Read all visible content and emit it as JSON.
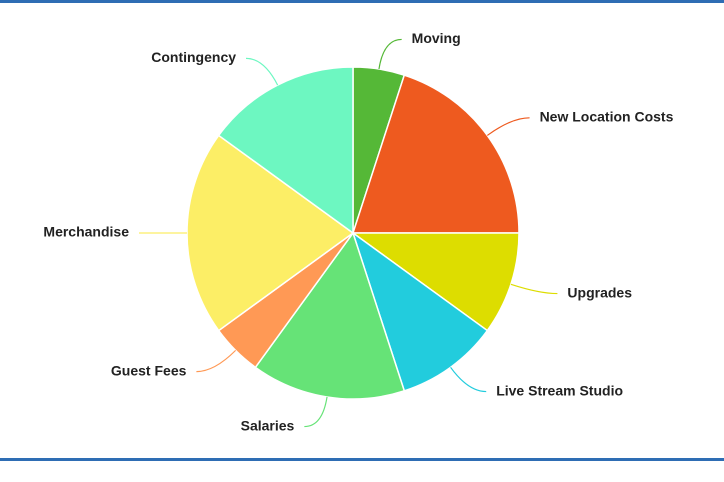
{
  "chart_data": {
    "type": "pie",
    "categories": [
      "Moving",
      "New Location Costs",
      "Upgrades",
      "Live Stream Studio",
      "Salaries",
      "Guest Fees",
      "Merchandise",
      "Contingency"
    ],
    "values": [
      5,
      20,
      10,
      10,
      15,
      5,
      20,
      15
    ],
    "colors": [
      "#55b837",
      "#ee5a1f",
      "#dddd00",
      "#22ccdd",
      "#66e377",
      "#ff9955",
      "#fcee66",
      "#6df7c1"
    ]
  }
}
